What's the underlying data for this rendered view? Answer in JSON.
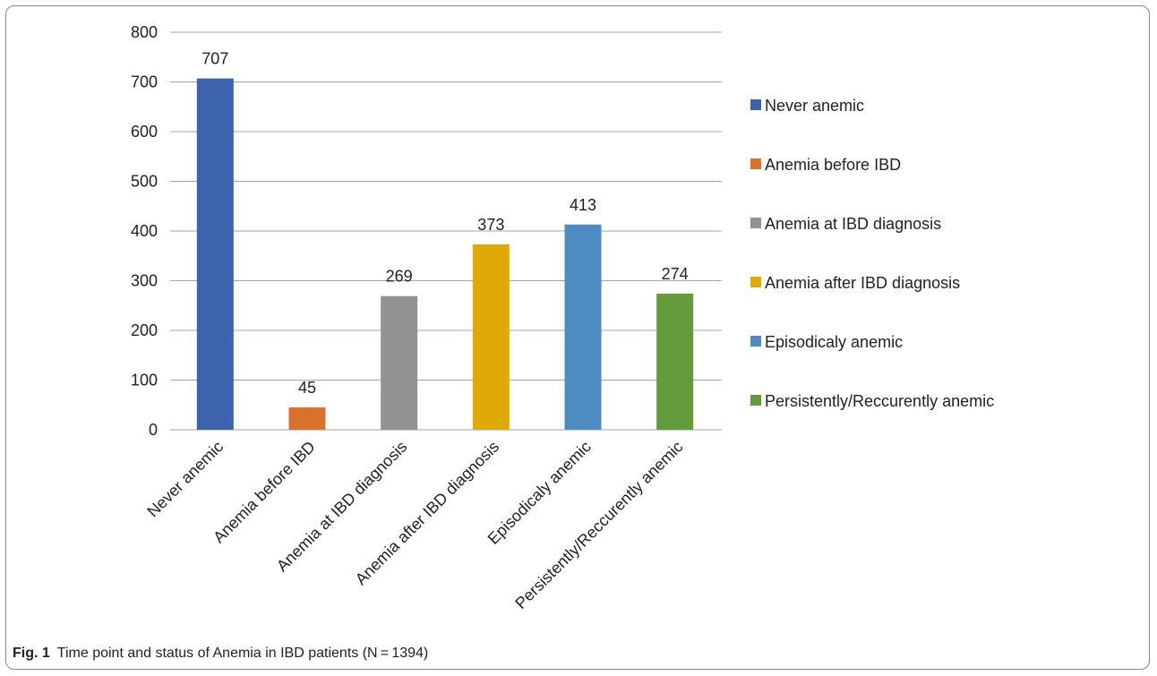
{
  "caption": {
    "figure_number": "Fig. 1",
    "text": "Time point and status of Anemia in IBD patients (N = 1394)"
  },
  "chart_data": {
    "type": "bar",
    "categories": [
      "Never anemic",
      "Anemia before IBD",
      "Anemia at IBD diagnosis",
      "Anemia after IBD diagnosis",
      "Episodicaly anemic",
      "Persistently/Reccurently anemic"
    ],
    "values": [
      707,
      45,
      269,
      373,
      413,
      274
    ],
    "colors": [
      "#3c63ac",
      "#d9712e",
      "#929292",
      "#e0aa06",
      "#4f8bc3",
      "#639a3b"
    ],
    "ylim": [
      0,
      800
    ],
    "yticks": [
      0,
      100,
      200,
      300,
      400,
      500,
      600,
      700,
      800
    ],
    "grid": true,
    "legend_position": "right",
    "title": "",
    "xlabel": "",
    "ylabel": ""
  }
}
